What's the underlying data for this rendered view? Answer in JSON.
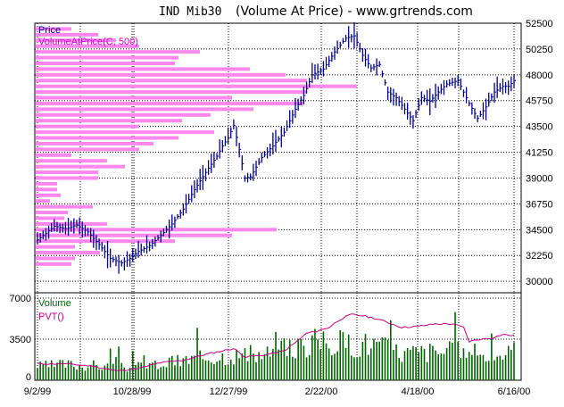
{
  "window": {
    "title_symbol": "IND Mib30",
    "title_rest": "(Volume At Price) - www.grtrends.com"
  },
  "chart_data": [
    {
      "type": "candlestick",
      "panel": "price",
      "legend": [
        "Price",
        "VolumeAtPrice(C, 500)"
      ],
      "ylim": [
        29000,
        52500
      ],
      "y_ticks": [
        "52500",
        "50250",
        "48000",
        "45750",
        "43500",
        "41250",
        "39000",
        "36750",
        "34500",
        "32250",
        "30000"
      ],
      "y_tick_values": [
        52500,
        50250,
        48000,
        45750,
        43500,
        41250,
        39000,
        36750,
        34500,
        32250,
        30000
      ],
      "x_ticks": [
        "9/2/99",
        "10/28/99",
        "12/27/99",
        "2/22/00",
        "4/18/00",
        "6/16/00"
      ],
      "grid": true,
      "legend_position": "top-left",
      "colors": {
        "price": "#00008b",
        "vap": "#ff88ee",
        "grid": "#000000"
      },
      "price_path_anchors": [
        [
          0,
          33600
        ],
        [
          3,
          34200
        ],
        [
          6,
          34800
        ],
        [
          10,
          34600
        ],
        [
          14,
          34900
        ],
        [
          18,
          34300
        ],
        [
          22,
          33200
        ],
        [
          26,
          32000
        ],
        [
          30,
          31600
        ],
        [
          33,
          32000
        ],
        [
          36,
          32600
        ],
        [
          40,
          33100
        ],
        [
          44,
          34000
        ],
        [
          48,
          35000
        ],
        [
          52,
          36300
        ],
        [
          56,
          38000
        ],
        [
          60,
          39500
        ],
        [
          64,
          40900
        ],
        [
          66,
          41800
        ],
        [
          68,
          42500
        ],
        [
          70,
          43600
        ],
        [
          72,
          41500
        ],
        [
          74,
          39000
        ],
        [
          76,
          39100
        ],
        [
          80,
          40800
        ],
        [
          84,
          41800
        ],
        [
          88,
          43000
        ],
        [
          92,
          45000
        ],
        [
          95,
          46200
        ],
        [
          98,
          48000
        ],
        [
          102,
          48500
        ],
        [
          106,
          50000
        ],
        [
          110,
          51200
        ],
        [
          113,
          51400
        ],
        [
          116,
          49700
        ],
        [
          119,
          48600
        ],
        [
          122,
          48900
        ],
        [
          125,
          46500
        ],
        [
          128,
          46000
        ],
        [
          131,
          45000
        ],
        [
          134,
          44000
        ],
        [
          137,
          46000
        ],
        [
          140,
          45700
        ],
        [
          143,
          46500
        ],
        [
          146,
          47200
        ],
        [
          150,
          47500
        ],
        [
          152,
          46500
        ],
        [
          154,
          45500
        ],
        [
          157,
          44200
        ],
        [
          160,
          45200
        ],
        [
          163,
          46500
        ],
        [
          166,
          47000
        ],
        [
          168,
          47000
        ],
        [
          170,
          47500
        ]
      ],
      "volume_at_price": [
        {
          "price": 52000,
          "volume": 20
        },
        {
          "price": 51500,
          "volume": 35
        },
        {
          "price": 51000,
          "volume": 45
        },
        {
          "price": 50500,
          "volume": 58
        },
        {
          "price": 50000,
          "volume": 92
        },
        {
          "price": 49500,
          "volume": 80
        },
        {
          "price": 49000,
          "volume": 78
        },
        {
          "price": 48500,
          "volume": 120
        },
        {
          "price": 48000,
          "volume": 140
        },
        {
          "price": 47500,
          "volume": 152
        },
        {
          "price": 47000,
          "volume": 180
        },
        {
          "price": 46500,
          "volume": 152
        },
        {
          "price": 46000,
          "volume": 110
        },
        {
          "price": 45500,
          "volume": 150
        },
        {
          "price": 45000,
          "volume": 122
        },
        {
          "price": 44500,
          "volume": 98
        },
        {
          "price": 44000,
          "volume": 82
        },
        {
          "price": 43500,
          "volume": 58
        },
        {
          "price": 43000,
          "volume": 100
        },
        {
          "price": 42500,
          "volume": 80
        },
        {
          "price": 42000,
          "volume": 66
        },
        {
          "price": 41500,
          "volume": 58
        },
        {
          "price": 41000,
          "volume": 20
        },
        {
          "price": 40500,
          "volume": 40
        },
        {
          "price": 40000,
          "volume": 50
        },
        {
          "price": 39500,
          "volume": 35
        },
        {
          "price": 39000,
          "volume": 35
        },
        {
          "price": 38500,
          "volume": 12
        },
        {
          "price": 38000,
          "volume": 12
        },
        {
          "price": 37500,
          "volume": 14
        },
        {
          "price": 37000,
          "volume": 8
        },
        {
          "price": 36500,
          "volume": 32
        },
        {
          "price": 36000,
          "volume": 18
        },
        {
          "price": 35500,
          "volume": 16
        },
        {
          "price": 35000,
          "volume": 40
        },
        {
          "price": 34500,
          "volume": 135
        },
        {
          "price": 34000,
          "volume": 110
        },
        {
          "price": 33500,
          "volume": 78
        },
        {
          "price": 33000,
          "volume": 22
        },
        {
          "price": 32500,
          "volume": 36
        },
        {
          "price": 32000,
          "volume": 22
        },
        {
          "price": 31500,
          "volume": 20
        }
      ]
    },
    {
      "type": "bar",
      "panel": "volume",
      "legend": [
        "Volume",
        "PVT()"
      ],
      "ylim": [
        0,
        7000
      ],
      "y_ticks": [
        "7000",
        "3500",
        "0"
      ],
      "y_tick_values": [
        7000,
        3500,
        0
      ],
      "grid": true,
      "colors": {
        "volume": "#006400",
        "pvt": "#c0007f"
      },
      "volume_anchors": [
        [
          0,
          1300
        ],
        [
          10,
          1500
        ],
        [
          20,
          1400
        ],
        [
          30,
          1200
        ],
        [
          40,
          1400
        ],
        [
          50,
          1800
        ],
        [
          60,
          2200
        ],
        [
          70,
          2400
        ],
        [
          80,
          2400
        ],
        [
          90,
          3000
        ],
        [
          100,
          3700
        ],
        [
          110,
          3500
        ],
        [
          120,
          3400
        ],
        [
          130,
          2600
        ],
        [
          140,
          2700
        ],
        [
          150,
          2700
        ],
        [
          160,
          2400
        ],
        [
          170,
          2600
        ]
      ],
      "pvt_anchors": [
        [
          0,
          1400
        ],
        [
          10,
          1400
        ],
        [
          20,
          1200
        ],
        [
          28,
          800
        ],
        [
          36,
          1000
        ],
        [
          44,
          1500
        ],
        [
          52,
          1700
        ],
        [
          60,
          2200
        ],
        [
          66,
          2500
        ],
        [
          70,
          2700
        ],
        [
          74,
          2000
        ],
        [
          80,
          2100
        ],
        [
          88,
          2500
        ],
        [
          92,
          3200
        ],
        [
          96,
          4000
        ],
        [
          100,
          4200
        ],
        [
          104,
          4500
        ],
        [
          108,
          5200
        ],
        [
          112,
          5600
        ],
        [
          116,
          5500
        ],
        [
          120,
          5300
        ],
        [
          124,
          5000
        ],
        [
          130,
          4500
        ],
        [
          136,
          4600
        ],
        [
          142,
          4800
        ],
        [
          148,
          4800
        ],
        [
          152,
          4500
        ],
        [
          154,
          3300
        ],
        [
          158,
          3500
        ],
        [
          162,
          3600
        ],
        [
          166,
          3900
        ],
        [
          170,
          3800
        ]
      ]
    }
  ]
}
